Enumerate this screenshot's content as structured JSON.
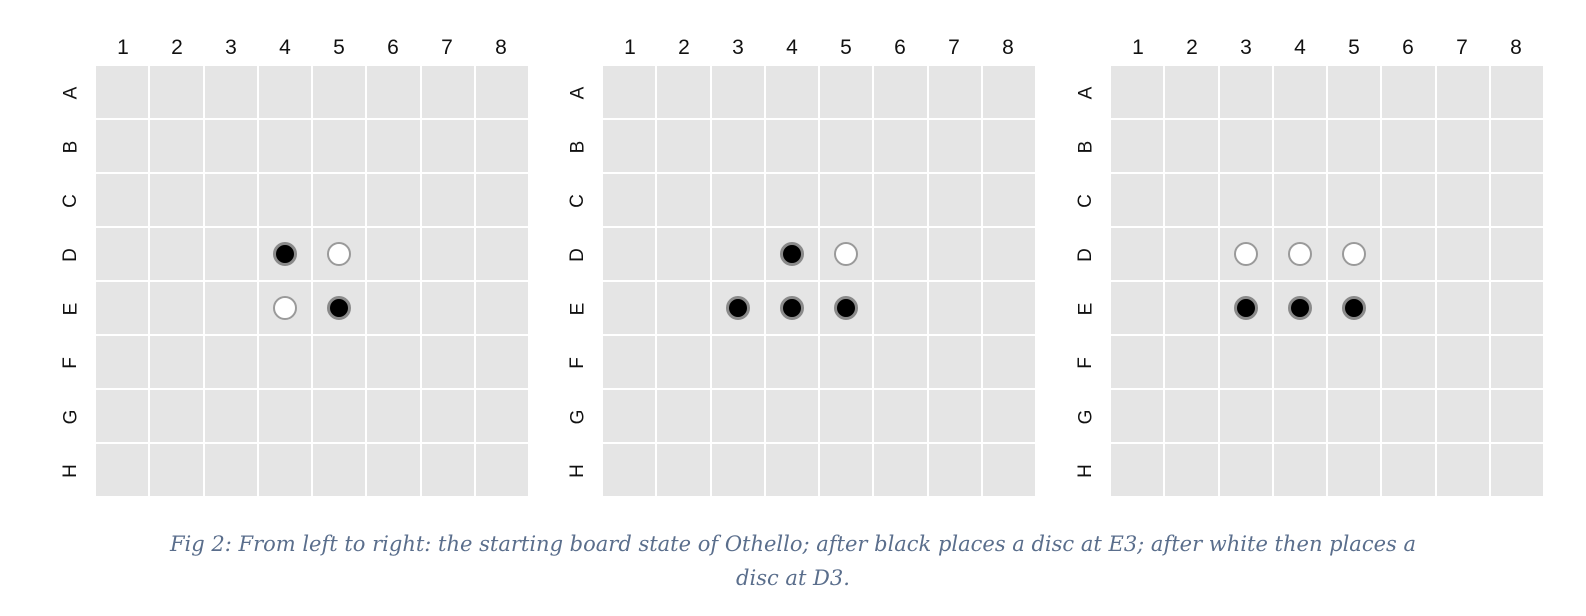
{
  "columns": [
    "1",
    "2",
    "3",
    "4",
    "5",
    "6",
    "7",
    "8"
  ],
  "rows": [
    "A",
    "B",
    "C",
    "D",
    "E",
    "F",
    "G",
    "H"
  ],
  "colors": {
    "cell": "#e5e5e5",
    "grid_line": "#ffffff",
    "black_disc": "#000000",
    "white_disc": "#ffffff",
    "disc_ring": "#8a8a8a",
    "caption": "#5a6e8c"
  },
  "boards": [
    {
      "discs": [
        {
          "row": "D",
          "col": "4",
          "color": "black"
        },
        {
          "row": "D",
          "col": "5",
          "color": "white"
        },
        {
          "row": "E",
          "col": "4",
          "color": "white"
        },
        {
          "row": "E",
          "col": "5",
          "color": "black"
        }
      ]
    },
    {
      "discs": [
        {
          "row": "D",
          "col": "4",
          "color": "black"
        },
        {
          "row": "D",
          "col": "5",
          "color": "white"
        },
        {
          "row": "E",
          "col": "3",
          "color": "black"
        },
        {
          "row": "E",
          "col": "4",
          "color": "black"
        },
        {
          "row": "E",
          "col": "5",
          "color": "black"
        }
      ]
    },
    {
      "discs": [
        {
          "row": "D",
          "col": "3",
          "color": "white"
        },
        {
          "row": "D",
          "col": "4",
          "color": "white"
        },
        {
          "row": "D",
          "col": "5",
          "color": "white"
        },
        {
          "row": "E",
          "col": "3",
          "color": "black"
        },
        {
          "row": "E",
          "col": "4",
          "color": "black"
        },
        {
          "row": "E",
          "col": "5",
          "color": "black"
        }
      ]
    }
  ],
  "caption": {
    "line1": "Fig 2: From left to right: the starting board state of Othello; after black places a disc at E3; after white then places a",
    "line2": "disc at D3."
  }
}
